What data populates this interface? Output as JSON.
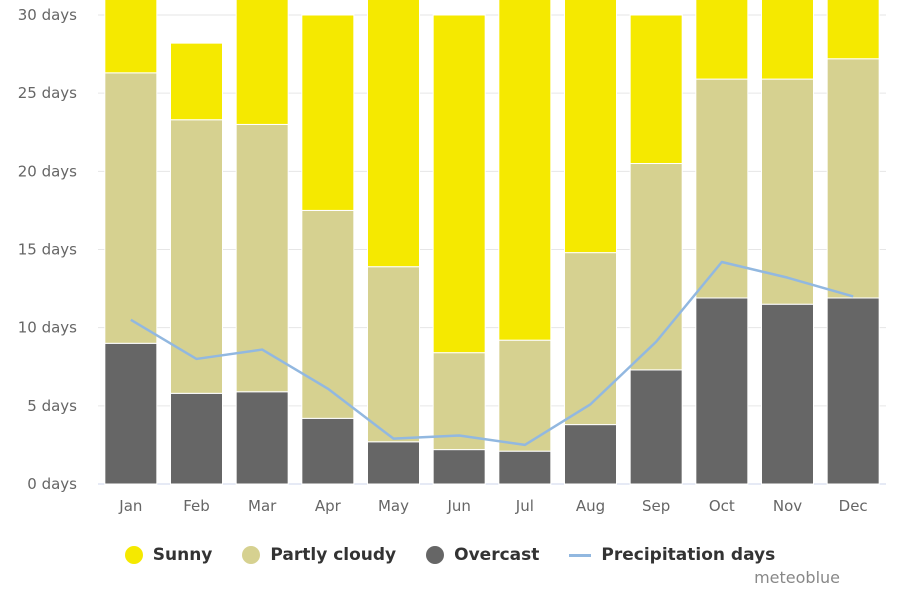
{
  "chart_data": {
    "type": "bar",
    "stacked": true,
    "categories": [
      "Jan",
      "Feb",
      "Mar",
      "Apr",
      "May",
      "Jun",
      "Jul",
      "Aug",
      "Sep",
      "Oct",
      "Nov",
      "Dec"
    ],
    "y_ticks": [
      "0 days",
      "5 days",
      "10 days",
      "15 days",
      "20 days",
      "25 days",
      "30 days"
    ],
    "ylim": [
      0,
      30
    ],
    "grid": true,
    "legend_position": "bottom",
    "series": [
      {
        "name": "Overcast",
        "color": "#666666",
        "values": [
          9.0,
          5.8,
          5.9,
          4.2,
          2.7,
          2.2,
          2.1,
          3.8,
          7.3,
          11.9,
          11.5,
          11.9
        ]
      },
      {
        "name": "Partly cloudy",
        "color": "#d6d190",
        "values": [
          17.3,
          17.5,
          17.1,
          13.3,
          11.2,
          6.2,
          7.1,
          11.0,
          13.2,
          14.0,
          14.4,
          15.3
        ]
      },
      {
        "name": "Sunny",
        "color": "#f5e900",
        "values": [
          4.7,
          4.9,
          8.0,
          12.5,
          17.1,
          21.6,
          21.8,
          16.2,
          9.5,
          5.1,
          5.1,
          3.8
        ]
      }
    ],
    "line_series": {
      "name": "Precipitation days",
      "color": "#92b8e0",
      "values": [
        10.5,
        8.0,
        8.6,
        6.1,
        2.9,
        3.1,
        2.5,
        5.1,
        9.1,
        14.2,
        13.2,
        12.0
      ]
    }
  },
  "legend": {
    "sunny": "Sunny",
    "partly_cloudy": "Partly cloudy",
    "overcast": "Overcast",
    "precipitation": "Precipitation days"
  },
  "credit": "meteoblue"
}
